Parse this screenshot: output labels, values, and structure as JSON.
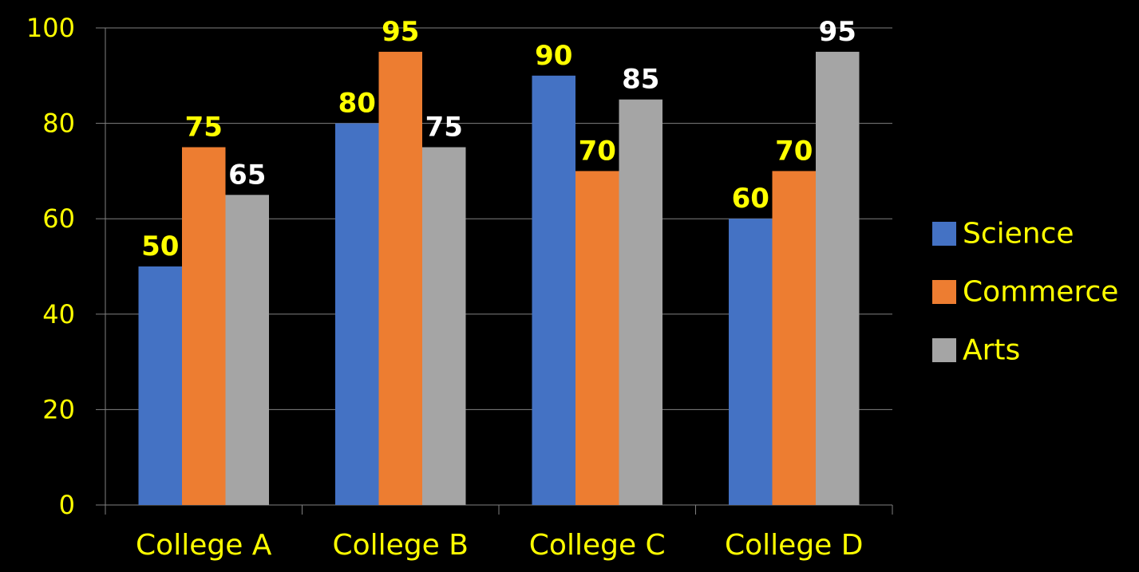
{
  "chart_data": {
    "type": "bar",
    "title": "",
    "xlabel": "",
    "ylabel": "",
    "categories": [
      "College A",
      "College B",
      "College C",
      "College D"
    ],
    "series": [
      {
        "name": "Science",
        "values": [
          50,
          80,
          90,
          60
        ],
        "color": "#4472C4"
      },
      {
        "name": "Commerce",
        "values": [
          75,
          95,
          70,
          70
        ],
        "color": "#ED7D31"
      },
      {
        "name": "Arts",
        "values": [
          65,
          75,
          85,
          95
        ],
        "color": "#A5A5A5"
      }
    ],
    "ylim": [
      0,
      100
    ],
    "y_ticks": [
      "0",
      "20",
      "40",
      "60",
      "80",
      "100"
    ],
    "y_tick_values": [
      0,
      20,
      40,
      60,
      80,
      100
    ],
    "grid": true,
    "legend_position": "right",
    "data_label_colors": {
      "Science": "#FFFF00",
      "Commerce": "#FFFF00",
      "Arts": "#FFFFFF"
    },
    "text_color": "#FFFF00",
    "background": "#000000",
    "grid_color": "#808080"
  }
}
